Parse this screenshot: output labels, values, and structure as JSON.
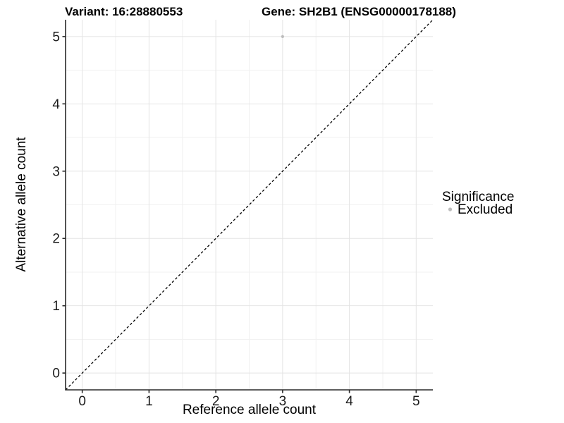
{
  "chart_data": {
    "type": "scatter",
    "titles": {
      "left": "Variant: 16:28880553",
      "right": "Gene: SH2B1 (ENSG00000178188)"
    },
    "xlabel": "Reference allele count",
    "ylabel": "Alternative allele count",
    "xlim": [
      -0.25,
      5.25
    ],
    "ylim": [
      -0.25,
      5.25
    ],
    "x_ticks": [
      0,
      1,
      2,
      3,
      4,
      5
    ],
    "y_ticks": [
      0,
      1,
      2,
      3,
      4,
      5
    ],
    "minor_grid_step": 0.5,
    "grid": true,
    "series": [
      {
        "name": "Excluded",
        "color": "#bdbdbd",
        "points": [
          {
            "x": 3,
            "y": 5
          }
        ]
      }
    ],
    "reference_line": {
      "type": "identity",
      "style": "dashed",
      "color": "#000000",
      "from": [
        -0.25,
        -0.25
      ],
      "to": [
        5.25,
        5.25
      ]
    },
    "legend": {
      "title": "Significance",
      "position": "right",
      "items": [
        {
          "label": "Excluded",
          "color": "#bdbdbd"
        }
      ]
    },
    "colors": {
      "background": "#ffffff",
      "grid_major": "#e4e4e4",
      "grid_minor": "#f1f1f1",
      "axis_line": "#2a2a2a",
      "tick_mark": "#2a2a2a"
    }
  }
}
